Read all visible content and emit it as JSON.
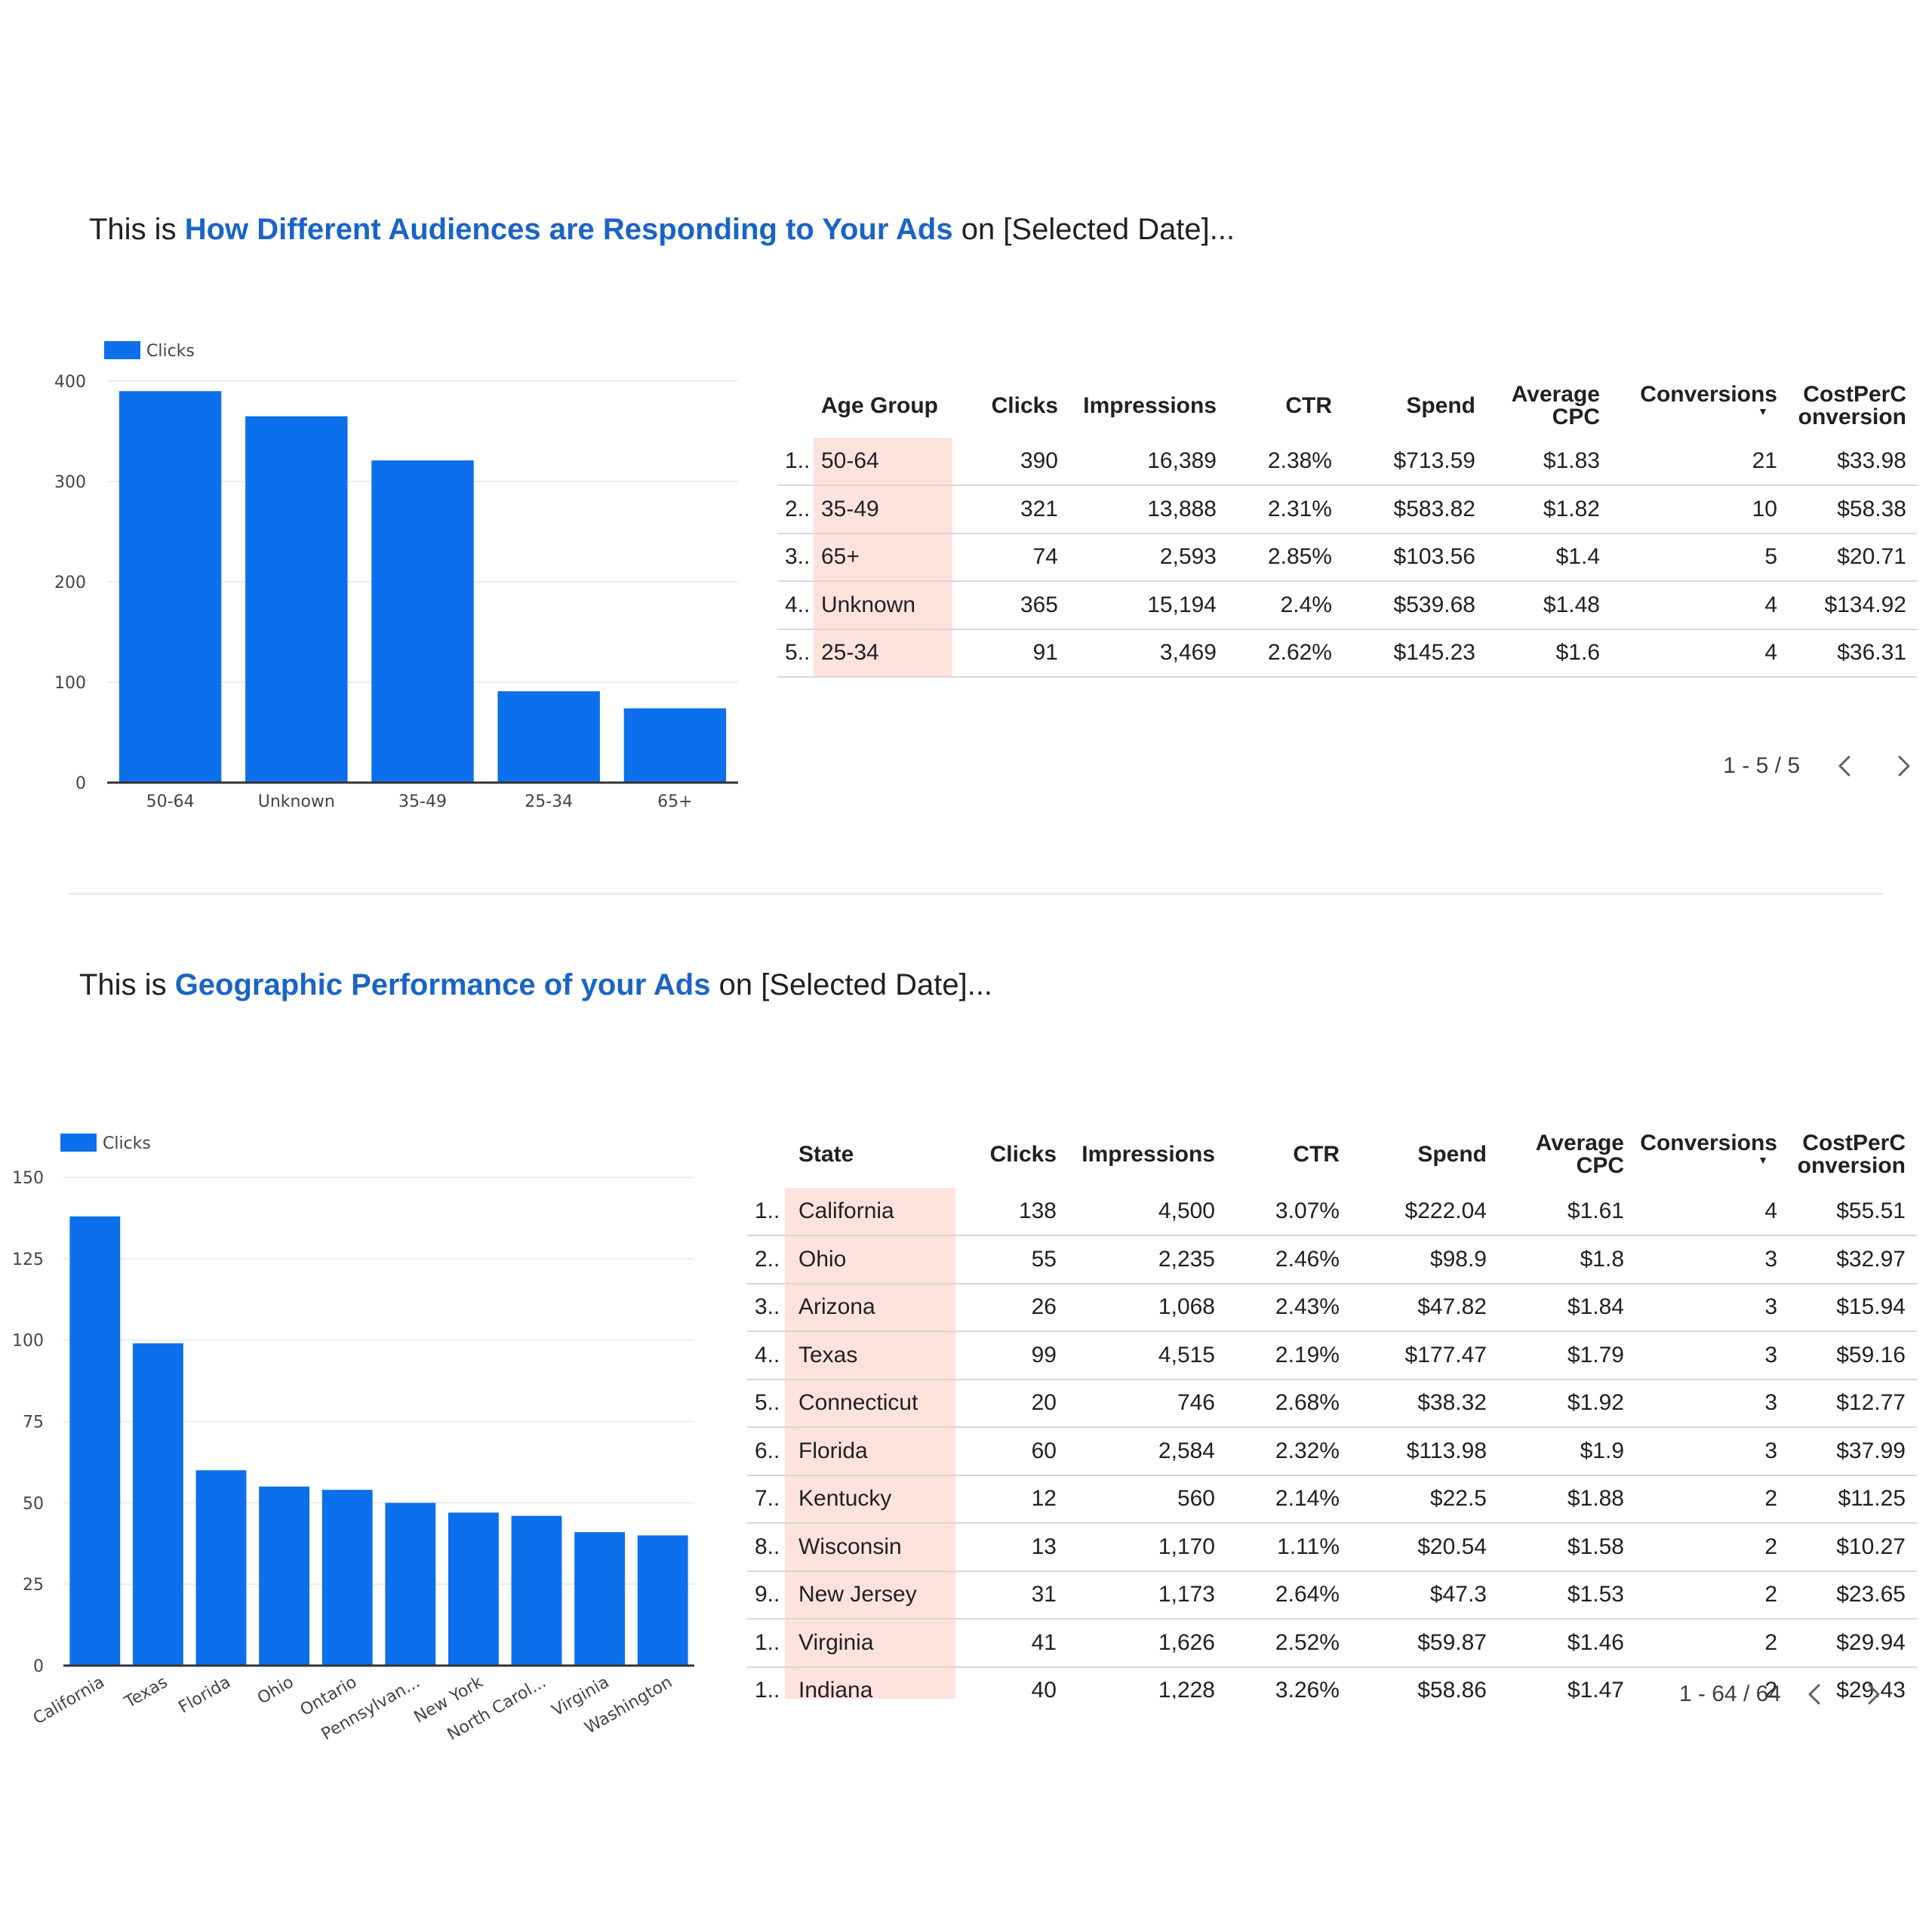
{
  "sections": [
    {
      "headline": {
        "prefix": "This is ",
        "highlight": "How Different Audiences are Responding to Your Ads",
        "suffix": " on [Selected Date]..."
      },
      "chart_data": {
        "type": "bar",
        "legend": "Clicks",
        "categories": [
          "50-64",
          "Unknown",
          "35-49",
          "25-34",
          "65+"
        ],
        "series": [
          {
            "name": "Clicks",
            "values": [
              390,
              365,
              321,
              91,
              74
            ]
          }
        ],
        "ylim": [
          0,
          400
        ],
        "yticks": [
          0,
          100,
          200,
          300,
          400
        ],
        "grid": true,
        "legend_position": "top-left",
        "bar_color": "#0c70ec",
        "tick_rotation": 0
      },
      "table": {
        "headers": {
          "dim": "Age Group",
          "clicks": "Clicks",
          "impressions": "Impressions",
          "ctr": "CTR",
          "spend": "Spend",
          "cpc_1": "Average",
          "cpc_2": "CPC",
          "conversions": "Conversions",
          "cpconv_1": "CostPerC",
          "cpconv_2": "onversion"
        },
        "rows": [
          {
            "idx": "1..",
            "dim": "50-64",
            "clicks": "390",
            "impressions": "16,389",
            "ctr": "2.38%",
            "spend": "$713.59",
            "cpc": "$1.83",
            "conversions": "21",
            "cpconv": "$33.98"
          },
          {
            "idx": "2..",
            "dim": "35-49",
            "clicks": "321",
            "impressions": "13,888",
            "ctr": "2.31%",
            "spend": "$583.82",
            "cpc": "$1.82",
            "conversions": "10",
            "cpconv": "$58.38"
          },
          {
            "idx": "3..",
            "dim": "65+",
            "clicks": "74",
            "impressions": "2,593",
            "ctr": "2.85%",
            "spend": "$103.56",
            "cpc": "$1.4",
            "conversions": "5",
            "cpconv": "$20.71"
          },
          {
            "idx": "4..",
            "dim": "Unknown",
            "clicks": "365",
            "impressions": "15,194",
            "ctr": "2.4%",
            "spend": "$539.68",
            "cpc": "$1.48",
            "conversions": "4",
            "cpconv": "$134.92"
          },
          {
            "idx": "5..",
            "dim": "25-34",
            "clicks": "91",
            "impressions": "3,469",
            "ctr": "2.62%",
            "spend": "$145.23",
            "cpc": "$1.6",
            "conversions": "4",
            "cpconv": "$36.31"
          }
        ],
        "pager": "1 - 5 / 5",
        "highlight_color": "#fde3dc"
      }
    },
    {
      "headline": {
        "prefix": "This is ",
        "highlight": "Geographic Performance of your Ads",
        "suffix": " on [Selected Date]..."
      },
      "chart_data": {
        "type": "bar",
        "legend": "Clicks",
        "categories": [
          "California",
          "Texas",
          "Florida",
          "Ohio",
          "Ontario",
          "Pennsylvan...",
          "New York",
          "North Carol...",
          "Virginia",
          "Washington"
        ],
        "series": [
          {
            "name": "Clicks",
            "values": [
              138,
              99,
              60,
              55,
              54,
              50,
              47,
              46,
              41,
              40
            ]
          }
        ],
        "ylim": [
          0,
          150
        ],
        "yticks": [
          0,
          25,
          50,
          75,
          100,
          125,
          150
        ],
        "grid": true,
        "legend_position": "top-left",
        "bar_color": "#0c70ec",
        "tick_rotation": -30
      },
      "table": {
        "headers": {
          "dim": "State",
          "clicks": "Clicks",
          "impressions": "Impressions",
          "ctr": "CTR",
          "spend": "Spend",
          "cpc_1": "Average",
          "cpc_2": "CPC",
          "conversions": "Conversions",
          "cpconv_1": "CostPerC",
          "cpconv_2": "onversion"
        },
        "rows": [
          {
            "idx": "1..",
            "dim": "California",
            "clicks": "138",
            "impressions": "4,500",
            "ctr": "3.07%",
            "spend": "$222.04",
            "cpc": "$1.61",
            "conversions": "4",
            "cpconv": "$55.51"
          },
          {
            "idx": "2..",
            "dim": "Ohio",
            "clicks": "55",
            "impressions": "2,235",
            "ctr": "2.46%",
            "spend": "$98.9",
            "cpc": "$1.8",
            "conversions": "3",
            "cpconv": "$32.97"
          },
          {
            "idx": "3..",
            "dim": "Arizona",
            "clicks": "26",
            "impressions": "1,068",
            "ctr": "2.43%",
            "spend": "$47.82",
            "cpc": "$1.84",
            "conversions": "3",
            "cpconv": "$15.94"
          },
          {
            "idx": "4..",
            "dim": "Texas",
            "clicks": "99",
            "impressions": "4,515",
            "ctr": "2.19%",
            "spend": "$177.47",
            "cpc": "$1.79",
            "conversions": "3",
            "cpconv": "$59.16"
          },
          {
            "idx": "5..",
            "dim": "Connecticut",
            "clicks": "20",
            "impressions": "746",
            "ctr": "2.68%",
            "spend": "$38.32",
            "cpc": "$1.92",
            "conversions": "3",
            "cpconv": "$12.77"
          },
          {
            "idx": "6..",
            "dim": "Florida",
            "clicks": "60",
            "impressions": "2,584",
            "ctr": "2.32%",
            "spend": "$113.98",
            "cpc": "$1.9",
            "conversions": "3",
            "cpconv": "$37.99"
          },
          {
            "idx": "7..",
            "dim": "Kentucky",
            "clicks": "12",
            "impressions": "560",
            "ctr": "2.14%",
            "spend": "$22.5",
            "cpc": "$1.88",
            "conversions": "2",
            "cpconv": "$11.25"
          },
          {
            "idx": "8..",
            "dim": "Wisconsin",
            "clicks": "13",
            "impressions": "1,170",
            "ctr": "1.11%",
            "spend": "$20.54",
            "cpc": "$1.58",
            "conversions": "2",
            "cpconv": "$10.27"
          },
          {
            "idx": "9..",
            "dim": "New Jersey",
            "clicks": "31",
            "impressions": "1,173",
            "ctr": "2.64%",
            "spend": "$47.3",
            "cpc": "$1.53",
            "conversions": "2",
            "cpconv": "$23.65"
          },
          {
            "idx": "1..",
            "dim": "Virginia",
            "clicks": "41",
            "impressions": "1,626",
            "ctr": "2.52%",
            "spend": "$59.87",
            "cpc": "$1.46",
            "conversions": "2",
            "cpconv": "$29.94"
          },
          {
            "idx": "1..",
            "dim": "Indiana",
            "clicks": "40",
            "impressions": "1,228",
            "ctr": "3.26%",
            "spend": "$58.86",
            "cpc": "$1.47",
            "conversions": "2",
            "cpconv": "$29.43"
          }
        ],
        "pager": "1 - 64 / 64",
        "highlight_color": "#fde3dc"
      }
    }
  ],
  "icons": {
    "prev": "chevron-left-icon",
    "next": "chevron-right-icon",
    "sort": "sort-desc-icon"
  }
}
